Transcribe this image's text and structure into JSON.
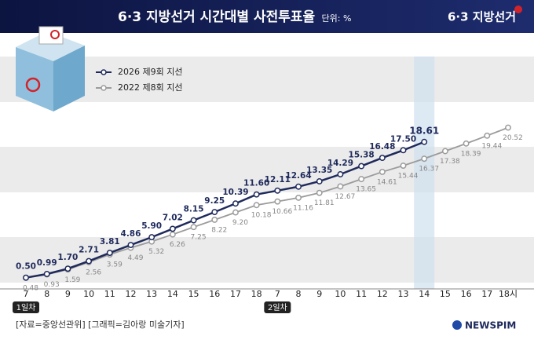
{
  "chart_data": {
    "type": "line",
    "title": "6·3 지방선거 시간대별 사전투표율",
    "subtitle": "단위: %",
    "logo": "6·3 지방선거",
    "source": "[자료=중앙선관위] [그래픽=김아랑 미술기자]",
    "brand": "NEWSPIM",
    "categories": [
      "7",
      "8",
      "9",
      "10",
      "11",
      "12",
      "13",
      "14",
      "15",
      "16",
      "17",
      "18",
      "7",
      "8",
      "9",
      "10",
      "11",
      "12",
      "13",
      "14",
      "15",
      "16",
      "17",
      "18시"
    ],
    "day_labels": [
      "1일차",
      null,
      null,
      null,
      null,
      null,
      null,
      null,
      null,
      null,
      null,
      null,
      "2일차",
      null,
      null,
      null,
      null,
      null,
      null,
      null,
      null,
      null,
      null,
      null
    ],
    "ylim": [
      -1,
      30
    ],
    "series": [
      {
        "name": "2026 제9회 지선",
        "color": "#1f2a5c",
        "values": [
          0.5,
          0.99,
          1.7,
          2.71,
          3.81,
          4.86,
          5.9,
          7.02,
          8.15,
          9.25,
          10.39,
          11.6,
          12.11,
          12.64,
          13.35,
          14.29,
          15.38,
          16.48,
          17.5,
          18.61,
          null,
          null,
          null,
          null
        ],
        "value_labels": [
          "0.50",
          "0.99",
          "1.70",
          "2.71",
          "3.81",
          "4.86",
          "5.90",
          "7.02",
          "8.15",
          "9.25",
          "10.39",
          "11.60",
          "12.11",
          "12.64",
          "13.35",
          "14.29",
          "15.38",
          "16.48",
          "17.50",
          "18.61",
          null,
          null,
          null,
          null
        ]
      },
      {
        "name": "2022 제8회 지선",
        "color": "#9b9b9b",
        "values": [
          0.48,
          0.93,
          1.59,
          2.56,
          3.59,
          4.49,
          5.32,
          6.26,
          7.25,
          8.22,
          9.2,
          10.18,
          10.66,
          11.16,
          11.81,
          12.67,
          13.65,
          14.61,
          15.44,
          16.37,
          17.38,
          18.39,
          19.44,
          20.52
        ],
        "value_labels": [
          "0.48",
          "0.93",
          "1.59",
          "2.56",
          "3.59",
          "4.49",
          "5.32",
          "6.26",
          "7.25",
          "8.22",
          "9.20",
          "10.18",
          "10.66",
          "11.16",
          "11.81",
          "12.67",
          "13.65",
          "14.61",
          "15.44",
          "16.37",
          "17.38",
          "18.39",
          "19.44",
          "20.52"
        ]
      }
    ]
  }
}
